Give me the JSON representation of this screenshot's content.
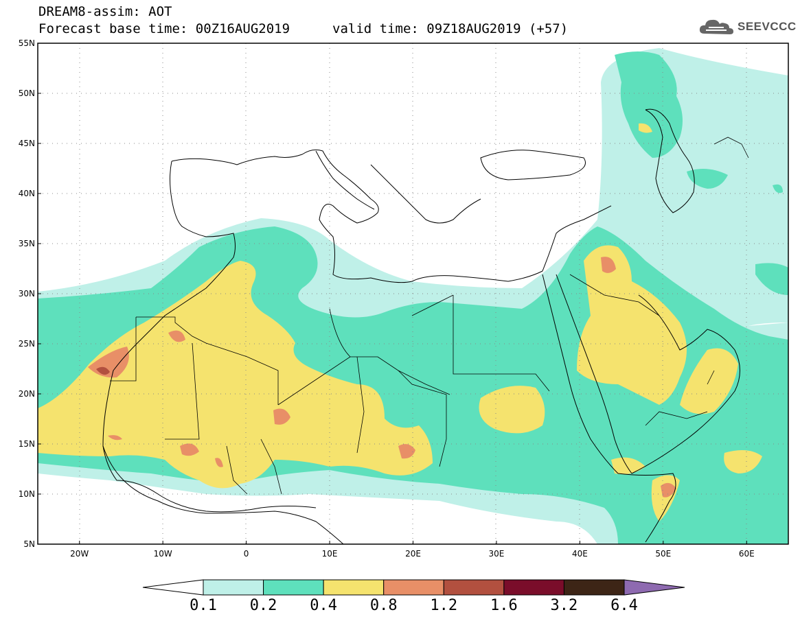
{
  "header": {
    "title": "DREAM8-assim: AOT",
    "base_label": "Forecast base time: 00Z16AUG2019",
    "valid_label": "valid time: 09Z18AUG2019 (+57)"
  },
  "logo": {
    "text": "SEEVCCC",
    "icon": "cloud-icon"
  },
  "map": {
    "lon_range": [
      -25,
      65
    ],
    "lat_range": [
      5,
      55
    ],
    "lat_ticks": [
      "5N",
      "10N",
      "15N",
      "20N",
      "25N",
      "30N",
      "35N",
      "40N",
      "45N",
      "50N",
      "55N"
    ],
    "lon_ticks": [
      "20W",
      "10W",
      "0",
      "10E",
      "20E",
      "30E",
      "40E",
      "50E",
      "60E"
    ],
    "grid": "dotted"
  },
  "colorbar": {
    "labels": [
      "0.1",
      "0.2",
      "0.4",
      "0.8",
      "1.2",
      "1.6",
      "3.2",
      "6.4"
    ],
    "colors": [
      "#ffffff",
      "#bff0e8",
      "#5ee0bc",
      "#f5e36e",
      "#e88f67",
      "#b2503f",
      "#7a0d2a",
      "#3d2516",
      "#8e6ab0"
    ]
  }
}
